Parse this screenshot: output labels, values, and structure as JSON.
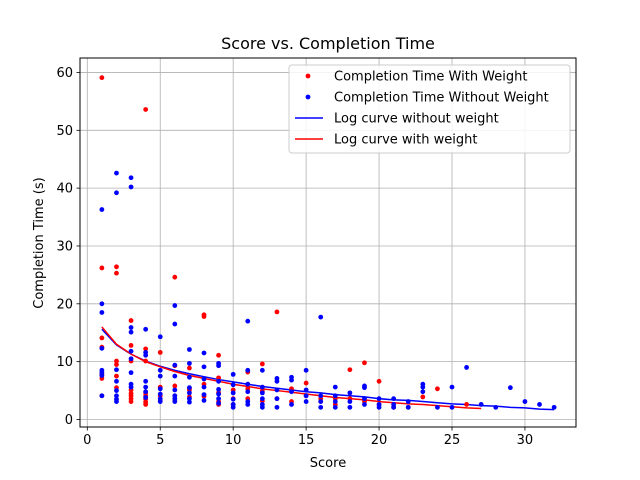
{
  "chart_data": {
    "type": "scatter",
    "title": "Score vs. Completion Time",
    "xlabel": "Score",
    "ylabel": "Completion Time (s)",
    "xlim": [
      -0.5,
      33.5
    ],
    "ylim": [
      -1.3,
      62.5
    ],
    "xticks": [
      0,
      5,
      10,
      15,
      20,
      25,
      30
    ],
    "yticks": [
      0,
      10,
      20,
      30,
      40,
      50,
      60
    ],
    "grid": true,
    "legend_position": "top-right",
    "series": [
      {
        "name": "Completion Time With Weight",
        "kind": "scatter",
        "color": "#ff0000",
        "points": [
          [
            1,
            59.1
          ],
          [
            1,
            26.2
          ],
          [
            1,
            14.1
          ],
          [
            1,
            12.5
          ],
          [
            1,
            7.8
          ],
          [
            1,
            7.1
          ],
          [
            1,
            4.1
          ],
          [
            2,
            26.4
          ],
          [
            2,
            25.3
          ],
          [
            2,
            10.1
          ],
          [
            2,
            9.5
          ],
          [
            2,
            7.5
          ],
          [
            2,
            5.5
          ],
          [
            3,
            17.1
          ],
          [
            3,
            12.8
          ],
          [
            3,
            10.1
          ],
          [
            3,
            5.1
          ],
          [
            3,
            4.5
          ],
          [
            3,
            4.1
          ],
          [
            3,
            3.6
          ],
          [
            3,
            3.1
          ],
          [
            4,
            53.6
          ],
          [
            4,
            12.2
          ],
          [
            4,
            10.1
          ],
          [
            4,
            4.6
          ],
          [
            4,
            4.1
          ],
          [
            4,
            3.5
          ],
          [
            4,
            3.0
          ],
          [
            4,
            2.6
          ],
          [
            5,
            11.6
          ],
          [
            5,
            5.6
          ],
          [
            5,
            4.1
          ],
          [
            5,
            3.2
          ],
          [
            6,
            24.6
          ],
          [
            6,
            9.3
          ],
          [
            6,
            5.8
          ],
          [
            6,
            4.1
          ],
          [
            6,
            3.2
          ],
          [
            7,
            8.9
          ],
          [
            7,
            5.4
          ],
          [
            7,
            5.1
          ],
          [
            7,
            3.9
          ],
          [
            8,
            18.1
          ],
          [
            8,
            17.8
          ],
          [
            8,
            6.1
          ],
          [
            8,
            4.0
          ],
          [
            9,
            11.1
          ],
          [
            9,
            7.2
          ],
          [
            9,
            4.6
          ],
          [
            9,
            3.1
          ],
          [
            9,
            2.6
          ],
          [
            10,
            5.1
          ],
          [
            10,
            3.6
          ],
          [
            10,
            2.6
          ],
          [
            11,
            8.2
          ],
          [
            11,
            5.3
          ],
          [
            11,
            3.6
          ],
          [
            12,
            9.6
          ],
          [
            12,
            4.9
          ],
          [
            12,
            3.2
          ],
          [
            13,
            18.6
          ],
          [
            13,
            3.6
          ],
          [
            14,
            5.3
          ],
          [
            14,
            3.1
          ],
          [
            15,
            6.3
          ],
          [
            15,
            4.1
          ],
          [
            16,
            3.6
          ],
          [
            16,
            3.1
          ],
          [
            17,
            3.6
          ],
          [
            17,
            2.6
          ],
          [
            18,
            8.6
          ],
          [
            18,
            3.6
          ],
          [
            19,
            9.8
          ],
          [
            19,
            3.1
          ],
          [
            20,
            6.6
          ],
          [
            20,
            2.6
          ],
          [
            21,
            2.1
          ],
          [
            22,
            2.1
          ],
          [
            23,
            3.9
          ],
          [
            24,
            5.3
          ],
          [
            26,
            2.6
          ]
        ]
      },
      {
        "name": "Completion Time Without Weight",
        "kind": "scatter",
        "color": "#0000ff",
        "points": [
          [
            1,
            36.3
          ],
          [
            1,
            20.0
          ],
          [
            1,
            18.5
          ],
          [
            1,
            12.3
          ],
          [
            1,
            8.5
          ],
          [
            1,
            8.1
          ],
          [
            1,
            7.6
          ],
          [
            1,
            4.1
          ],
          [
            2,
            42.6
          ],
          [
            2,
            39.2
          ],
          [
            2,
            8.6
          ],
          [
            2,
            6.6
          ],
          [
            2,
            5.0
          ],
          [
            2,
            4.1
          ],
          [
            2,
            3.5
          ],
          [
            2,
            3.1
          ],
          [
            3,
            41.8
          ],
          [
            3,
            40.2
          ],
          [
            3,
            15.9
          ],
          [
            3,
            15.1
          ],
          [
            3,
            11.8
          ],
          [
            3,
            10.5
          ],
          [
            3,
            8.1
          ],
          [
            3,
            6.1
          ],
          [
            3,
            5.6
          ],
          [
            4,
            15.6
          ],
          [
            4,
            11.6
          ],
          [
            4,
            11.1
          ],
          [
            4,
            6.6
          ],
          [
            4,
            5.6
          ],
          [
            4,
            4.8
          ],
          [
            4,
            3.8
          ],
          [
            5,
            14.3
          ],
          [
            5,
            8.5
          ],
          [
            5,
            7.5
          ],
          [
            5,
            5.3
          ],
          [
            5,
            4.4
          ],
          [
            5,
            3.6
          ],
          [
            5,
            3.1
          ],
          [
            6,
            19.7
          ],
          [
            6,
            16.5
          ],
          [
            6,
            9.4
          ],
          [
            6,
            7.5
          ],
          [
            6,
            5.1
          ],
          [
            6,
            4.1
          ],
          [
            6,
            3.6
          ],
          [
            6,
            3.1
          ],
          [
            7,
            12.1
          ],
          [
            7,
            9.7
          ],
          [
            7,
            7.3
          ],
          [
            7,
            5.5
          ],
          [
            7,
            4.6
          ],
          [
            7,
            3.6
          ],
          [
            7,
            3.0
          ],
          [
            8,
            11.5
          ],
          [
            8,
            9.1
          ],
          [
            8,
            7.0
          ],
          [
            8,
            5.6
          ],
          [
            8,
            4.3
          ],
          [
            8,
            3.3
          ],
          [
            9,
            9.7
          ],
          [
            9,
            9.3
          ],
          [
            9,
            6.6
          ],
          [
            9,
            5.2
          ],
          [
            9,
            4.4
          ],
          [
            9,
            3.6
          ],
          [
            9,
            2.8
          ],
          [
            10,
            7.8
          ],
          [
            10,
            6.0
          ],
          [
            10,
            4.6
          ],
          [
            10,
            3.5
          ],
          [
            10,
            2.6
          ],
          [
            10,
            2.1
          ],
          [
            11,
            17.0
          ],
          [
            11,
            8.5
          ],
          [
            11,
            6.1
          ],
          [
            11,
            4.8
          ],
          [
            11,
            3.1
          ],
          [
            11,
            2.6
          ],
          [
            12,
            8.5
          ],
          [
            12,
            5.6
          ],
          [
            12,
            4.6
          ],
          [
            12,
            3.6
          ],
          [
            12,
            2.6
          ],
          [
            12,
            2.1
          ],
          [
            13,
            7.1
          ],
          [
            13,
            6.6
          ],
          [
            13,
            5.1
          ],
          [
            13,
            3.6
          ],
          [
            13,
            2.1
          ],
          [
            14,
            7.3
          ],
          [
            14,
            6.8
          ],
          [
            14,
            4.8
          ],
          [
            14,
            2.6
          ],
          [
            15,
            8.5
          ],
          [
            15,
            5.1
          ],
          [
            15,
            4.1
          ],
          [
            15,
            3.1
          ],
          [
            16,
            17.7
          ],
          [
            16,
            4.1
          ],
          [
            16,
            3.1
          ],
          [
            16,
            2.1
          ],
          [
            17,
            5.6
          ],
          [
            17,
            4.1
          ],
          [
            17,
            3.1
          ],
          [
            17,
            2.1
          ],
          [
            18,
            4.6
          ],
          [
            18,
            3.1
          ],
          [
            18,
            2.1
          ],
          [
            19,
            5.8
          ],
          [
            19,
            5.5
          ],
          [
            19,
            3.6
          ],
          [
            19,
            2.6
          ],
          [
            20,
            3.6
          ],
          [
            20,
            2.6
          ],
          [
            20,
            2.1
          ],
          [
            21,
            3.6
          ],
          [
            21,
            2.6
          ],
          [
            21,
            2.1
          ],
          [
            22,
            3.1
          ],
          [
            22,
            2.1
          ],
          [
            23,
            6.1
          ],
          [
            23,
            5.6
          ],
          [
            23,
            4.8
          ],
          [
            24,
            2.1
          ],
          [
            25,
            5.6
          ],
          [
            25,
            2.1
          ],
          [
            26,
            9.0
          ],
          [
            27,
            2.6
          ],
          [
            28,
            2.1
          ],
          [
            29,
            5.5
          ],
          [
            30,
            3.1
          ],
          [
            31,
            2.6
          ],
          [
            32,
            2.1
          ]
        ]
      },
      {
        "name": "Log curve without weight",
        "kind": "line",
        "color": "#0000ff",
        "x": [
          1,
          2,
          3,
          4,
          5,
          6,
          7,
          8,
          9,
          10,
          11,
          12,
          13,
          14,
          15,
          16,
          17,
          18,
          19,
          20,
          21,
          22,
          23,
          24,
          25,
          26,
          27,
          28,
          29,
          30,
          31,
          32
        ],
        "y": [
          15.6,
          12.9,
          11.3,
          10.1,
          9.2,
          8.5,
          7.9,
          7.4,
          6.9,
          6.5,
          6.1,
          5.7,
          5.4,
          5.1,
          4.8,
          4.6,
          4.3,
          4.1,
          3.9,
          3.6,
          3.4,
          3.3,
          3.1,
          2.9,
          2.7,
          2.6,
          2.4,
          2.3,
          2.1,
          2.0,
          1.8,
          1.7
        ]
      },
      {
        "name": "Log curve with weight",
        "kind": "line",
        "color": "#ff0000",
        "x": [
          1,
          2,
          3,
          4,
          5,
          6,
          7,
          8,
          9,
          10,
          11,
          12,
          13,
          14,
          15,
          16,
          17,
          18,
          19,
          20,
          21,
          22,
          23,
          24,
          25,
          26,
          27
        ],
        "y": [
          16.0,
          13.0,
          11.3,
          10.0,
          9.1,
          8.3,
          7.6,
          7.1,
          6.6,
          6.1,
          5.7,
          5.3,
          5.0,
          4.7,
          4.4,
          4.1,
          3.8,
          3.6,
          3.4,
          3.1,
          2.9,
          2.7,
          2.6,
          2.4,
          2.2,
          2.0,
          1.9
        ]
      }
    ],
    "legend_order": [
      0,
      1,
      2,
      3
    ]
  }
}
